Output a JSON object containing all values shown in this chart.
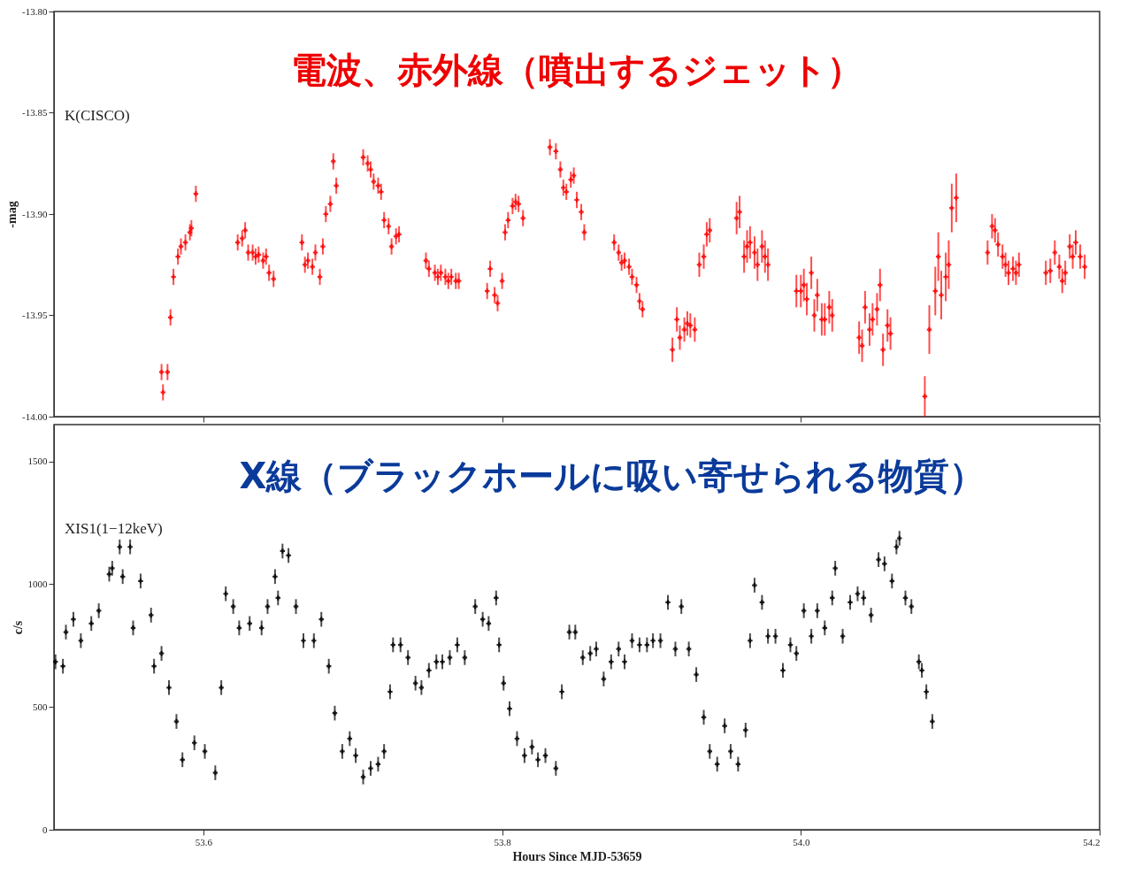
{
  "chart_data": [
    {
      "type": "scatter",
      "title": "電波、赤外線（噴出するジェット）",
      "ylabel": "-mag",
      "xlim": [
        53.5,
        54.2
      ],
      "xticks": [
        {
          "value": 53.6,
          "label": null
        },
        {
          "value": 53.8,
          "label": null
        },
        {
          "value": 54.0,
          "label": null
        },
        {
          "value": 54.2,
          "label": null
        }
      ],
      "ylim": [
        -14.0,
        -13.8
      ],
      "yticks": [
        {
          "value": -14.0,
          "label": "-14.00"
        },
        {
          "value": -13.95,
          "label": "-13.95"
        },
        {
          "value": -13.9,
          "label": "-13.90"
        },
        {
          "value": -13.85,
          "label": "-13.85"
        },
        {
          "value": -13.8,
          "label": "-13.80"
        }
      ],
      "tick_labels": "y",
      "grid": false,
      "legend": false,
      "marker": "cross",
      "series": [
        {
          "name": "K(CISCO)",
          "color": "#ff0000",
          "x": [
            53.572,
            53.573,
            53.576,
            53.578,
            53.58,
            53.583,
            53.585,
            53.588,
            53.591,
            53.592,
            53.595,
            53.623,
            53.626,
            53.628,
            53.63,
            53.633,
            53.635,
            53.637,
            53.64,
            53.642,
            53.644,
            53.647,
            53.666,
            53.668,
            53.67,
            53.673,
            53.675,
            53.678,
            53.68,
            53.682,
            53.685,
            53.687,
            53.689,
            53.707,
            53.71,
            53.712,
            53.714,
            53.717,
            53.719,
            53.721,
            53.724,
            53.726,
            53.729,
            53.731,
            53.749,
            53.751,
            53.755,
            53.757,
            53.759,
            53.762,
            53.764,
            53.766,
            53.769,
            53.771,
            53.79,
            53.792,
            53.795,
            53.797,
            53.8,
            53.802,
            53.804,
            53.807,
            53.809,
            53.811,
            53.814,
            53.832,
            53.836,
            53.839,
            53.841,
            53.843,
            53.846,
            53.848,
            53.85,
            53.853,
            53.855,
            53.875,
            53.878,
            53.88,
            53.882,
            53.885,
            53.887,
            53.89,
            53.892,
            53.894,
            53.914,
            53.917,
            53.919,
            53.922,
            53.924,
            53.926,
            53.929,
            53.932,
            53.935,
            53.937,
            53.939,
            53.957,
            53.959,
            53.962,
            53.964,
            53.966,
            53.969,
            53.971,
            53.974,
            53.976,
            53.978,
            53.997,
            54.0,
            54.002,
            54.004,
            54.007,
            54.009,
            54.011,
            54.014,
            54.016,
            54.019,
            54.021,
            54.039,
            54.041,
            54.043,
            54.046,
            54.048,
            54.051,
            54.053,
            54.055,
            54.058,
            54.06,
            54.083,
            54.086,
            54.09,
            54.092,
            54.094,
            54.097,
            54.099,
            54.101,
            54.104,
            54.125,
            54.128,
            54.13,
            54.132,
            54.135,
            54.137,
            54.139,
            54.142,
            54.144,
            54.146,
            54.164,
            54.167,
            54.17,
            54.173,
            54.175,
            54.177,
            54.18,
            54.182,
            54.184,
            54.187,
            54.19
          ],
          "values": [
            -13.978,
            -13.988,
            -13.978,
            -13.951,
            -13.931,
            -13.921,
            -13.916,
            -13.914,
            -13.909,
            -13.907,
            -13.89,
            -13.914,
            -13.912,
            -13.908,
            -13.919,
            -13.919,
            -13.921,
            -13.92,
            -13.923,
            -13.921,
            -13.929,
            -13.932,
            -13.914,
            -13.925,
            -13.923,
            -13.926,
            -13.919,
            -13.931,
            -13.916,
            -13.9,
            -13.895,
            -13.874,
            -13.886,
            -13.872,
            -13.875,
            -13.878,
            -13.884,
            -13.886,
            -13.889,
            -13.903,
            -13.906,
            -13.916,
            -13.911,
            -13.91,
            -13.923,
            -13.927,
            -13.929,
            -13.931,
            -13.929,
            -13.931,
            -13.933,
            -13.931,
            -13.933,
            -13.933,
            -13.938,
            -13.927,
            -13.94,
            -13.944,
            -13.933,
            -13.909,
            -13.903,
            -13.896,
            -13.894,
            -13.895,
            -13.902,
            -13.867,
            -13.869,
            -13.878,
            -13.887,
            -13.889,
            -13.883,
            -13.881,
            -13.893,
            -13.899,
            -13.909,
            -13.914,
            -13.919,
            -13.924,
            -13.923,
            -13.926,
            -13.931,
            -13.935,
            -13.943,
            -13.947,
            -13.967,
            -13.952,
            -13.961,
            -13.957,
            -13.954,
            -13.955,
            -13.957,
            -13.925,
            -13.921,
            -13.91,
            -13.908,
            -13.902,
            -13.899,
            -13.921,
            -13.916,
            -13.914,
            -13.919,
            -13.925,
            -13.916,
            -13.921,
            -13.925,
            -13.938,
            -13.938,
            -13.935,
            -13.942,
            -13.929,
            -13.95,
            -13.94,
            -13.952,
            -13.952,
            -13.946,
            -13.95,
            -13.961,
            -13.965,
            -13.946,
            -13.957,
            -13.952,
            -13.947,
            -13.935,
            -13.967,
            -13.955,
            -13.959,
            -13.99,
            -13.957,
            -13.938,
            -13.921,
            -13.94,
            -13.931,
            -13.925,
            -13.897,
            -13.892,
            -13.919,
            -13.906,
            -13.908,
            -13.915,
            -13.921,
            -13.925,
            -13.929,
            -13.927,
            -13.929,
            -13.925,
            -13.929,
            -13.928,
            -13.919,
            -13.926,
            -13.933,
            -13.929,
            -13.916,
            -13.921,
            -13.914,
            -13.921,
            -13.926
          ],
          "errors": [
            0.004,
            0.004,
            0.004,
            0.004,
            0.004,
            0.004,
            0.004,
            0.004,
            0.004,
            0.004,
            0.004,
            0.004,
            0.004,
            0.004,
            0.004,
            0.004,
            0.004,
            0.004,
            0.004,
            0.004,
            0.004,
            0.004,
            0.004,
            0.004,
            0.004,
            0.004,
            0.004,
            0.004,
            0.004,
            0.004,
            0.004,
            0.004,
            0.004,
            0.004,
            0.004,
            0.004,
            0.004,
            0.004,
            0.004,
            0.004,
            0.004,
            0.004,
            0.004,
            0.004,
            0.004,
            0.004,
            0.004,
            0.004,
            0.004,
            0.004,
            0.004,
            0.004,
            0.004,
            0.004,
            0.004,
            0.004,
            0.004,
            0.004,
            0.004,
            0.004,
            0.004,
            0.004,
            0.004,
            0.004,
            0.004,
            0.004,
            0.004,
            0.004,
            0.004,
            0.004,
            0.004,
            0.004,
            0.004,
            0.004,
            0.004,
            0.004,
            0.004,
            0.004,
            0.004,
            0.004,
            0.004,
            0.004,
            0.004,
            0.004,
            0.006,
            0.006,
            0.006,
            0.006,
            0.006,
            0.006,
            0.006,
            0.006,
            0.006,
            0.006,
            0.006,
            0.008,
            0.008,
            0.008,
            0.008,
            0.008,
            0.008,
            0.008,
            0.008,
            0.008,
            0.008,
            0.008,
            0.008,
            0.008,
            0.008,
            0.008,
            0.008,
            0.008,
            0.008,
            0.008,
            0.008,
            0.008,
            0.008,
            0.008,
            0.008,
            0.008,
            0.008,
            0.008,
            0.008,
            0.008,
            0.008,
            0.008,
            0.01,
            0.012,
            0.012,
            0.012,
            0.012,
            0.012,
            0.012,
            0.012,
            0.012,
            0.006,
            0.006,
            0.006,
            0.006,
            0.006,
            0.006,
            0.006,
            0.006,
            0.006,
            0.006,
            0.006,
            0.006,
            0.006,
            0.006,
            0.006,
            0.006,
            0.006,
            0.006,
            0.006,
            0.006,
            0.006
          ]
        }
      ]
    },
    {
      "type": "scatter",
      "title": "X線（ブラックホールに吸い寄せられる物質）",
      "xlabel": "Hours Since MJD-53659",
      "ylabel": "c/s",
      "xlim": [
        53.5,
        54.2
      ],
      "xticks": [
        53.6,
        53.8,
        {
          "value": 54.0,
          "label": "54.0"
        },
        54.2
      ],
      "ylim": [
        0,
        1650
      ],
      "yticks": [
        0,
        500,
        1000,
        1500
      ],
      "grid": false,
      "legend": false,
      "marker": "cross",
      "series": [
        {
          "name": "XIS1(1−12keV)",
          "color": "#000000",
          "x": [
            53.501,
            53.506,
            53.508,
            53.513,
            53.518,
            53.525,
            53.53,
            53.537,
            53.539,
            53.544,
            53.546,
            53.551,
            53.553,
            53.558,
            53.565,
            53.567,
            53.572,
            53.577,
            53.582,
            53.586,
            53.594,
            53.601,
            53.608,
            53.612,
            53.615,
            53.62,
            53.624,
            53.631,
            53.639,
            53.643,
            53.648,
            53.65,
            53.653,
            53.657,
            53.662,
            53.667,
            53.674,
            53.679,
            53.684,
            53.688,
            53.693,
            53.698,
            53.702,
            53.707,
            53.712,
            53.717,
            53.721,
            53.725,
            53.727,
            53.732,
            53.737,
            53.742,
            53.746,
            53.751,
            53.756,
            53.76,
            53.765,
            53.77,
            53.775,
            53.782,
            53.787,
            53.791,
            53.796,
            53.798,
            53.801,
            53.805,
            53.81,
            53.815,
            53.82,
            53.824,
            53.829,
            53.836,
            53.84,
            53.845,
            53.849,
            53.854,
            53.859,
            53.863,
            53.868,
            53.873,
            53.878,
            53.882,
            53.887,
            53.892,
            53.897,
            53.901,
            53.906,
            53.911,
            53.916,
            53.92,
            53.925,
            53.93,
            53.935,
            53.939,
            53.944,
            53.949,
            53.953,
            53.958,
            53.963,
            53.966,
            53.969,
            53.974,
            53.978,
            53.983,
            53.988,
            53.993,
            53.997,
            54.002,
            54.007,
            54.011,
            54.016,
            54.021,
            54.023,
            54.028,
            54.033,
            54.038,
            54.042,
            54.047,
            54.052,
            54.056,
            54.061,
            54.064,
            54.066,
            54.07,
            54.074,
            54.079,
            54.081,
            54.084,
            54.088
          ],
          "values": [
            684,
            666,
            805,
            857,
            770,
            840,
            892,
            1041,
            1065,
            1152,
            1031,
            1152,
            822,
            1013,
            874,
            666,
            718,
            579,
            441,
            285,
            354,
            319,
            232,
            579,
            961,
            909,
            822,
            840,
            822,
            909,
            1031,
            944,
            1135,
            1117,
            909,
            770,
            770,
            857,
            666,
            475,
            319,
            371,
            302,
            215,
            250,
            267,
            319,
            562,
            753,
            753,
            701,
            597,
            579,
            649,
            684,
            684,
            701,
            753,
            701,
            909,
            857,
            840,
            944,
            753,
            597,
            493,
            371,
            302,
            337,
            285,
            302,
            250,
            562,
            805,
            805,
            701,
            718,
            736,
            614,
            684,
            736,
            684,
            770,
            753,
            753,
            770,
            770,
            926,
            736,
            909,
            736,
            632,
            458,
            319,
            267,
            423,
            319,
            267,
            406,
            770,
            996,
            926,
            788,
            788,
            649,
            753,
            718,
            892,
            788,
            892,
            822,
            944,
            1065,
            788,
            926,
            961,
            944,
            874,
            1100,
            1083,
            1013,
            1152,
            1187,
            944,
            909,
            684,
            649,
            562,
            441
          ],
          "errors": [
            30,
            30,
            30,
            30,
            30,
            30,
            30,
            30,
            30,
            30,
            30,
            30,
            30,
            30,
            30,
            30,
            30,
            30,
            30,
            30,
            30,
            30,
            30,
            30,
            30,
            30,
            30,
            30,
            30,
            30,
            30,
            30,
            30,
            30,
            30,
            30,
            30,
            30,
            30,
            30,
            30,
            30,
            30,
            30,
            30,
            30,
            30,
            30,
            30,
            30,
            30,
            30,
            30,
            30,
            30,
            30,
            30,
            30,
            30,
            30,
            30,
            30,
            30,
            30,
            30,
            30,
            30,
            30,
            30,
            30,
            30,
            30,
            30,
            30,
            30,
            30,
            30,
            30,
            30,
            30,
            30,
            30,
            30,
            30,
            30,
            30,
            30,
            30,
            30,
            30,
            30,
            30,
            30,
            30,
            30,
            30,
            30,
            30,
            30,
            30,
            30,
            30,
            30,
            30,
            30,
            30,
            30,
            30,
            30,
            30,
            30,
            30,
            30,
            30,
            30,
            30,
            30,
            30,
            30,
            30,
            30,
            30,
            30,
            30,
            30,
            30,
            30,
            30,
            30
          ]
        }
      ]
    }
  ]
}
